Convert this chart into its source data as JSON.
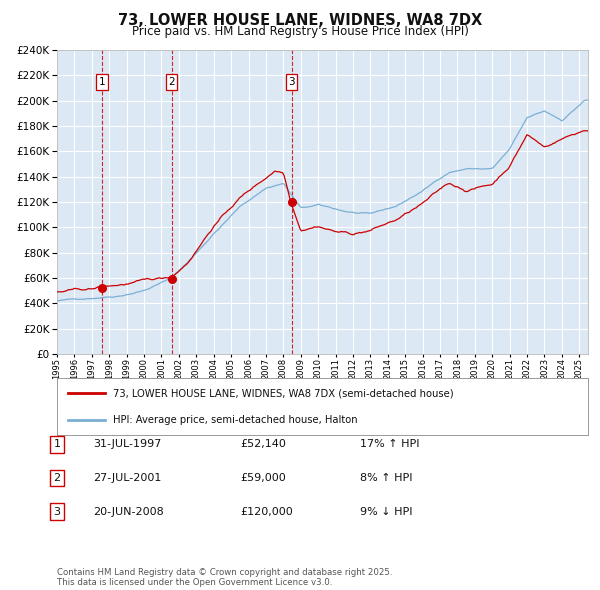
{
  "title": "73, LOWER HOUSE LANE, WIDNES, WA8 7DX",
  "subtitle": "Price paid vs. HM Land Registry's House Price Index (HPI)",
  "bg_color": "#dce9f5",
  "grid_color": "#ffffff",
  "red_line_color": "#cc0000",
  "blue_line_color": "#7bafd4",
  "sale1_date_num": 1997.58,
  "sale1_price": 52140,
  "sale2_date_num": 2001.58,
  "sale2_price": 59000,
  "sale3_date_num": 2008.47,
  "sale3_price": 120000,
  "ylim_min": 0,
  "ylim_max": 240000,
  "xlim_min": 1995.0,
  "xlim_max": 2025.5,
  "legend_red": "73, LOWER HOUSE LANE, WIDNES, WA8 7DX (semi-detached house)",
  "legend_blue": "HPI: Average price, semi-detached house, Halton",
  "table_entries": [
    {
      "num": "1",
      "date": "31-JUL-1997",
      "price": "£52,140",
      "hpi": "17% ↑ HPI"
    },
    {
      "num": "2",
      "date": "27-JUL-2001",
      "price": "£59,000",
      "hpi": "8% ↑ HPI"
    },
    {
      "num": "3",
      "date": "20-JUN-2008",
      "price": "£120,000",
      "hpi": "9% ↓ HPI"
    }
  ],
  "footer": "Contains HM Land Registry data © Crown copyright and database right 2025.\nThis data is licensed under the Open Government Licence v3.0."
}
